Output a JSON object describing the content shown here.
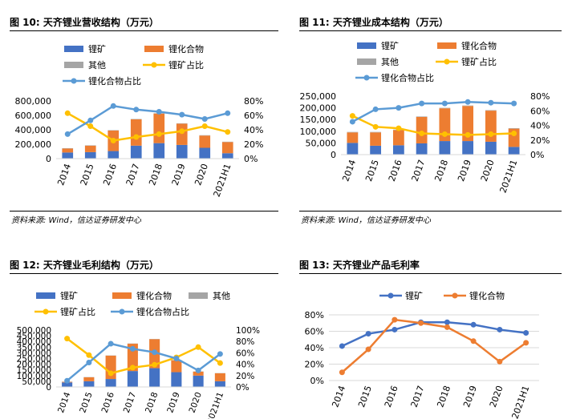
{
  "panels": [
    {
      "title": "图 10: 天齐锂业营收结构（万元）",
      "source": "资料来源: Wind，信达证券研发中心"
    },
    {
      "title": "图 11: 天齐锂业成本结构（万元）",
      "source": "资料来源: Wind，信达证券研发中心"
    },
    {
      "title": "图 12: 天齐锂业毛利结构（万元）",
      "source": ""
    },
    {
      "title": "图 13: 天齐锂业产品毛利率",
      "source": ""
    }
  ],
  "colors": {
    "lithium_ore": "#4472C4",
    "lithium_compound": "#ED7D31",
    "other": "#A5A5A5",
    "ore_share": "#FFC000",
    "compound_share": "#5B9BD5"
  },
  "chart_data": [
    {
      "type": "bar",
      "stacked": true,
      "title": "",
      "categories": [
        "2014",
        "2015",
        "2016",
        "2017",
        "2018",
        "2019",
        "2020",
        "2021H1"
      ],
      "series": [
        {
          "name": "锂矿",
          "kind": "bar",
          "axis": "left",
          "values": [
            85000,
            90000,
            105000,
            180000,
            215000,
            190000,
            150000,
            75000
          ]
        },
        {
          "name": "锂化合物",
          "kind": "bar",
          "axis": "left",
          "values": [
            55000,
            90000,
            285000,
            365000,
            410000,
            295000,
            170000,
            155000
          ]
        },
        {
          "name": "其他",
          "kind": "bar",
          "axis": "left",
          "values": [
            5000,
            5000,
            5000,
            5000,
            5000,
            5000,
            5000,
            5000
          ]
        },
        {
          "name": "锂矿占比",
          "kind": "line",
          "axis": "right",
          "values": [
            0.63,
            0.45,
            0.25,
            0.3,
            0.34,
            0.38,
            0.45,
            0.37
          ]
        },
        {
          "name": "锂化合物占比",
          "kind": "line",
          "axis": "right",
          "values": [
            0.34,
            0.53,
            0.73,
            0.68,
            0.65,
            0.61,
            0.55,
            0.63
          ]
        }
      ],
      "y_left": {
        "min": 0,
        "max": 800000,
        "ticks": [
          "0",
          "200,000",
          "400,000",
          "600,000",
          "800,000"
        ]
      },
      "y_right": {
        "min": 0,
        "max": 0.8,
        "ticks": [
          "0%",
          "20%",
          "40%",
          "60%",
          "80%"
        ]
      },
      "legend": "top"
    },
    {
      "type": "bar",
      "stacked": true,
      "title": "",
      "categories": [
        "2014",
        "2015",
        "2016",
        "2017",
        "2018",
        "2019",
        "2020",
        "2021H1"
      ],
      "series": [
        {
          "name": "锂矿",
          "kind": "bar",
          "axis": "left",
          "values": [
            50000,
            38000,
            40000,
            48000,
            58000,
            58000,
            55000,
            33000
          ]
        },
        {
          "name": "锂化合物",
          "kind": "bar",
          "axis": "left",
          "values": [
            45000,
            57000,
            65000,
            113000,
            140000,
            150000,
            133000,
            78000
          ]
        },
        {
          "name": "其他",
          "kind": "bar",
          "axis": "left",
          "values": [
            2000,
            2000,
            2000,
            2000,
            2000,
            2000,
            2000,
            2000
          ]
        },
        {
          "name": "锂矿占比",
          "kind": "line",
          "axis": "right",
          "values": [
            0.53,
            0.38,
            0.36,
            0.29,
            0.28,
            0.27,
            0.28,
            0.29
          ]
        },
        {
          "name": "锂化合物占比",
          "kind": "line",
          "axis": "right",
          "values": [
            0.45,
            0.62,
            0.64,
            0.7,
            0.7,
            0.72,
            0.71,
            0.7
          ]
        }
      ],
      "y_left": {
        "min": 0,
        "max": 250000,
        "ticks": [
          "0",
          "50,000",
          "100,000",
          "150,000",
          "200,000",
          "250,000"
        ]
      },
      "y_right": {
        "min": 0,
        "max": 0.8,
        "ticks": [
          "0%",
          "20%",
          "40%",
          "60%",
          "80%"
        ]
      },
      "legend": "top"
    },
    {
      "type": "bar",
      "stacked": true,
      "title": "",
      "categories": [
        "2014",
        "2015",
        "2016",
        "2017",
        "2018",
        "2019",
        "2020",
        "2021H1"
      ],
      "series": [
        {
          "name": "锂矿",
          "kind": "bar",
          "axis": "left",
          "values": [
            40000,
            50000,
            70000,
            140000,
            165000,
            130000,
            100000,
            50000
          ]
        },
        {
          "name": "锂化合物",
          "kind": "bar",
          "axis": "left",
          "values": [
            5000,
            35000,
            205000,
            240000,
            255000,
            105000,
            35000,
            70000
          ]
        },
        {
          "name": "其他",
          "kind": "bar",
          "axis": "left",
          "values": [
            2000,
            2000,
            2000,
            2000,
            2000,
            2000,
            2000,
            2000
          ]
        },
        {
          "name": "锂矿占比",
          "kind": "line",
          "axis": "right",
          "values": [
            0.85,
            0.56,
            0.24,
            0.34,
            0.39,
            0.52,
            0.7,
            0.42
          ]
        },
        {
          "name": "锂化合物占比",
          "kind": "line",
          "axis": "right",
          "values": [
            0.11,
            0.43,
            0.76,
            0.67,
            0.61,
            0.5,
            0.29,
            0.58
          ]
        }
      ],
      "y_left": {
        "min": 0,
        "max": 500000,
        "ticks": [
          "0",
          "50,000",
          "100,000",
          "150,000",
          "200,000",
          "250,000",
          "300,000",
          "350,000",
          "400,000",
          "450,000",
          "500,000"
        ]
      },
      "y_right": {
        "min": 0,
        "max": 1.0,
        "ticks": [
          "0%",
          "20%",
          "40%",
          "60%",
          "80%",
          "100%"
        ]
      },
      "legend": "top"
    },
    {
      "type": "line",
      "title": "",
      "categories": [
        "2014",
        "2015",
        "2016",
        "2017",
        "2018",
        "2019",
        "2020",
        "2021H1"
      ],
      "series": [
        {
          "name": "锂矿",
          "kind": "line",
          "axis": "left",
          "values": [
            0.42,
            0.57,
            0.62,
            0.71,
            0.71,
            0.68,
            0.62,
            0.58
          ]
        },
        {
          "name": "锂化合物",
          "kind": "line",
          "axis": "left",
          "values": [
            0.1,
            0.38,
            0.74,
            0.7,
            0.65,
            0.48,
            0.23,
            0.46
          ]
        }
      ],
      "y_left": {
        "min": 0,
        "max": 0.8,
        "ticks": [
          "0%",
          "20%",
          "40%",
          "60%",
          "80%"
        ]
      },
      "legend": "top"
    }
  ]
}
